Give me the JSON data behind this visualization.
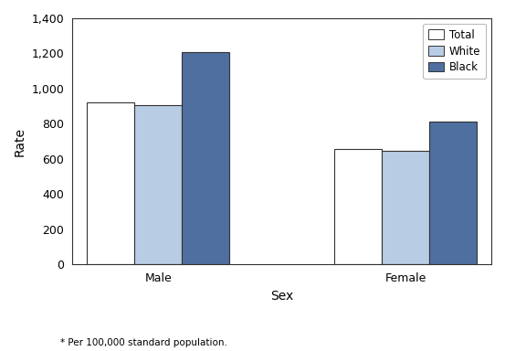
{
  "categories": [
    "Male",
    "Female"
  ],
  "series": {
    "Total": [
      920,
      655
    ],
    "White": [
      905,
      645
    ],
    "Black": [
      1205,
      812
    ]
  },
  "colors": {
    "Total": "#ffffff",
    "Black": "#5578a0"
  },
  "colors_hex": {
    "Total": "#ffffff",
    "White": "#b8cce4",
    "Black": "#4f6fa0"
  },
  "edgecolor": "#333333",
  "xlabel": "Sex",
  "ylabel": "Rate",
  "ylim": [
    0,
    1400
  ],
  "yticks": [
    0,
    200,
    400,
    600,
    800,
    1000,
    1200,
    1400
  ],
  "ytick_labels": [
    "0",
    "200",
    "400",
    "600",
    "800",
    "1,000",
    "1,200",
    "1,400"
  ],
  "footnote1": "* Per 100,000 standard population.",
  "bar_width": 0.25,
  "legend_labels": [
    "Total",
    "White",
    "Black"
  ],
  "background_color": "#ffffff"
}
